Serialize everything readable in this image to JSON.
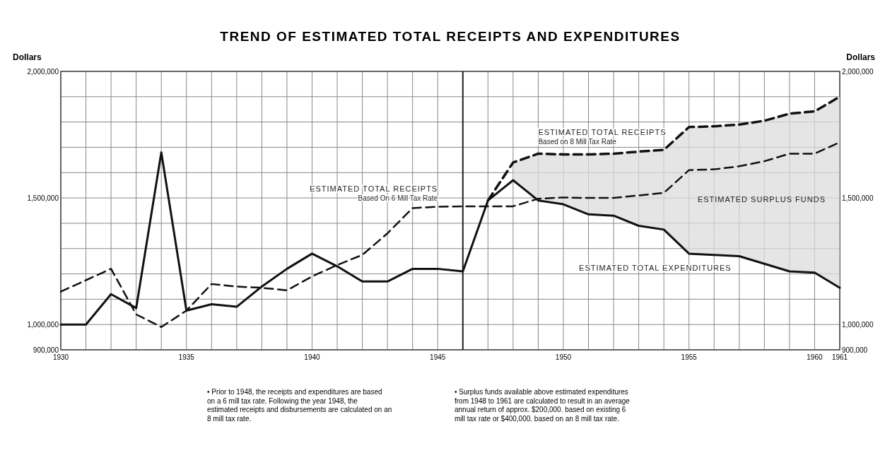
{
  "chart_data": {
    "type": "line",
    "title": "TREND OF ESTIMATED TOTAL RECEIPTS AND EXPENDITURES",
    "ylabel": "Dollars",
    "y2label": "Dollars",
    "xlim": [
      1930,
      1961
    ],
    "xticks": [
      1930,
      {
        "value": 1931,
        "label": null
      },
      {
        "value": 1932,
        "label": null
      },
      {
        "value": 1933,
        "label": null
      },
      {
        "value": 1934,
        "label": null
      },
      1935,
      {
        "value": 1936,
        "label": null
      },
      {
        "value": 1937,
        "label": null
      },
      {
        "value": 1938,
        "label": null
      },
      {
        "value": 1939,
        "label": null
      },
      1940,
      {
        "value": 1941,
        "label": null
      },
      {
        "value": 1942,
        "label": null
      },
      {
        "value": 1943,
        "label": null
      },
      {
        "value": 1944,
        "label": null
      },
      1945,
      {
        "value": 1946,
        "label": null
      },
      {
        "value": 1947,
        "label": null
      },
      {
        "value": 1948,
        "label": null
      },
      {
        "value": 1949,
        "label": null
      },
      1950,
      {
        "value": 1951,
        "label": null
      },
      {
        "value": 1952,
        "label": null
      },
      {
        "value": 1953,
        "label": null
      },
      {
        "value": 1954,
        "label": null
      },
      1955,
      {
        "value": 1956,
        "label": null
      },
      {
        "value": 1957,
        "label": null
      },
      {
        "value": 1958,
        "label": null
      },
      {
        "value": 1959,
        "label": null
      },
      1960,
      1961
    ],
    "ylim": [
      900000,
      2000000
    ],
    "yticks": [
      {
        "value": 900000,
        "label": "900,000"
      },
      {
        "value": 1000000,
        "label": "1,000,000"
      },
      {
        "value": 1100000,
        "label": null
      },
      {
        "value": 1200000,
        "label": null
      },
      {
        "value": 1300000,
        "label": null
      },
      {
        "value": 1400000,
        "label": null
      },
      {
        "value": 1500000,
        "label": "1,500,000"
      },
      {
        "value": 1600000,
        "label": null
      },
      {
        "value": 1700000,
        "label": null
      },
      {
        "value": 1800000,
        "label": null
      },
      {
        "value": 1900000,
        "label": null
      },
      {
        "value": 2000000,
        "label": "2,000,000"
      }
    ],
    "y2lim": [
      900000,
      2000000
    ],
    "y2ticks": [
      {
        "value": 900000,
        "label": "900,000"
      },
      {
        "value": 1000000,
        "label": "1,000,000"
      },
      {
        "value": 1500000,
        "label": "1,500,000"
      },
      {
        "value": 2000000,
        "label": "2,000,000"
      }
    ],
    "grid": true,
    "marker": "none",
    "series": [
      {
        "name": "ESTIMATED TOTAL EXPENDITURES",
        "color": "#111111",
        "line_style": "solid",
        "x": [
          1930,
          1931,
          1932,
          1933,
          1934,
          1935,
          1936,
          1937,
          1938,
          1939,
          1940,
          1941,
          1942,
          1943,
          1944,
          1945,
          1946,
          1947,
          1948,
          1949,
          1950,
          1951,
          1952,
          1953,
          1954,
          1955,
          1956,
          1957,
          1958,
          1959,
          1960,
          1961
        ],
        "values": [
          1000000,
          1000000,
          1120000,
          1065000,
          1680000,
          1055000,
          1080000,
          1070000,
          1150000,
          1220000,
          1280000,
          1230000,
          1170000,
          1170000,
          1220000,
          1220000,
          1210000,
          1490000,
          1570000,
          1490000,
          1475000,
          1435000,
          1430000,
          1390000,
          1375000,
          1280000,
          1275000,
          1270000,
          1240000,
          1210000,
          1205000,
          1145000
        ]
      },
      {
        "name": "ESTIMATED TOTAL RECEIPTS\nBased On 6 Mill Tax Rate",
        "color": "#111111",
        "line_style": "dashed",
        "x": [
          1930,
          1931,
          1932,
          1933,
          1934,
          1935,
          1936,
          1937,
          1938,
          1939,
          1940,
          1941,
          1942,
          1943,
          1944,
          1945,
          1946,
          1947,
          1948,
          1949,
          1950,
          1951,
          1952,
          1953,
          1954,
          1955,
          1956,
          1957,
          1958,
          1959,
          1960,
          1961
        ],
        "values": [
          1130000,
          1175000,
          1220000,
          1040000,
          990000,
          1055000,
          1160000,
          1150000,
          1145000,
          1135000,
          1190000,
          1235000,
          1275000,
          1360000,
          1460000,
          1465000,
          1467000,
          1467000,
          1467000,
          1497000,
          1502000,
          1500000,
          1500000,
          1510000,
          1520000,
          1610000,
          1613000,
          1625000,
          1645000,
          1675000,
          1675000,
          1720000
        ]
      },
      {
        "name": "ESTIMATED TOTAL RECEIPTS\nBased on 8 Mill Tax Rate",
        "color": "#111111",
        "line_style": "dashed",
        "x": [
          1947,
          1948,
          1949,
          1950,
          1951,
          1952,
          1953,
          1954,
          1955,
          1956,
          1957,
          1958,
          1959,
          1960,
          1961
        ],
        "values": [
          1490000,
          1640000,
          1675000,
          1672000,
          1672000,
          1675000,
          1683000,
          1690000,
          1780000,
          1783000,
          1790000,
          1805000,
          1833000,
          1842000,
          1900000
        ],
        "lower": [
          null,
          1570000,
          1490000,
          1475000,
          1435000,
          1430000,
          1390000,
          1375000,
          1280000,
          1275000,
          1270000,
          1240000,
          1210000,
          1205000,
          1145000
        ],
        "upper": [
          null,
          1640000,
          1675000,
          1672000,
          1672000,
          1675000,
          1683000,
          1690000,
          1780000,
          1783000,
          1790000,
          1805000,
          1833000,
          1842000,
          1900000
        ]
      }
    ],
    "ref_lines": [
      {
        "axis": "x",
        "value": 1946,
        "color": "#222222"
      }
    ],
    "annotations": [
      "ESTIMATED SURPLUS FUNDS",
      "• Prior to 1948, the receipts and expenditures are based on a 6 mill tax rate. Following the year 1948, the estimated receipts and disbursements are calculated on an 8 mill tax rate.",
      "• Surplus funds available above estimated expenditures from 1948 to 1961 are calculated to result in an average annual return of approx. $200,000. based on existing 6 mill tax rate or $400,000. based on an 8 mill tax rate."
    ]
  }
}
